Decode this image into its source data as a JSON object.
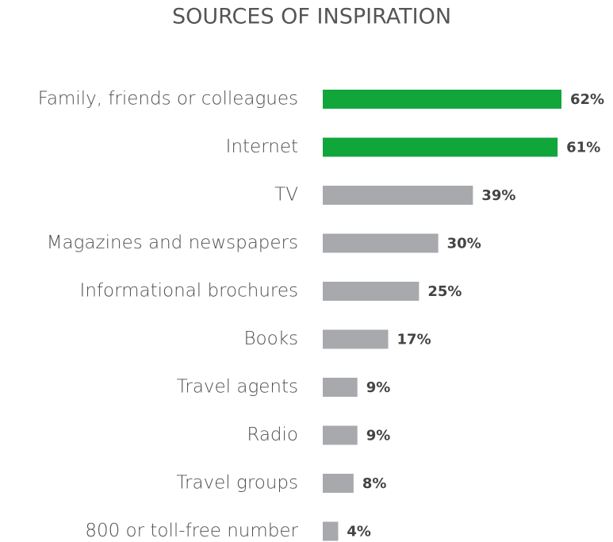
{
  "chart_data": {
    "type": "barh",
    "title": "SOURCES OF INSPIRATION",
    "categories": [
      "Family, friends or colleagues",
      "Internet",
      "TV",
      "Magazines and newspapers",
      "Informational brochures",
      "Books",
      "Travel agents",
      "Radio",
      "Travel groups",
      "800 or toll-free number"
    ],
    "values": [
      62,
      61,
      39,
      30,
      25,
      17,
      9,
      9,
      8,
      4
    ],
    "value_labels": [
      "62%",
      "61%",
      "39%",
      "30%",
      "25%",
      "17%",
      "9%",
      "9%",
      "8%",
      "4%"
    ],
    "colors": [
      "#10a63a",
      "#10a63a",
      "#a7a9ac",
      "#a7a9ac",
      "#a7a9ac",
      "#a7a9ac",
      "#a7a9ac",
      "#a7a9ac",
      "#a7a9ac",
      "#a7a9ac"
    ]
  }
}
